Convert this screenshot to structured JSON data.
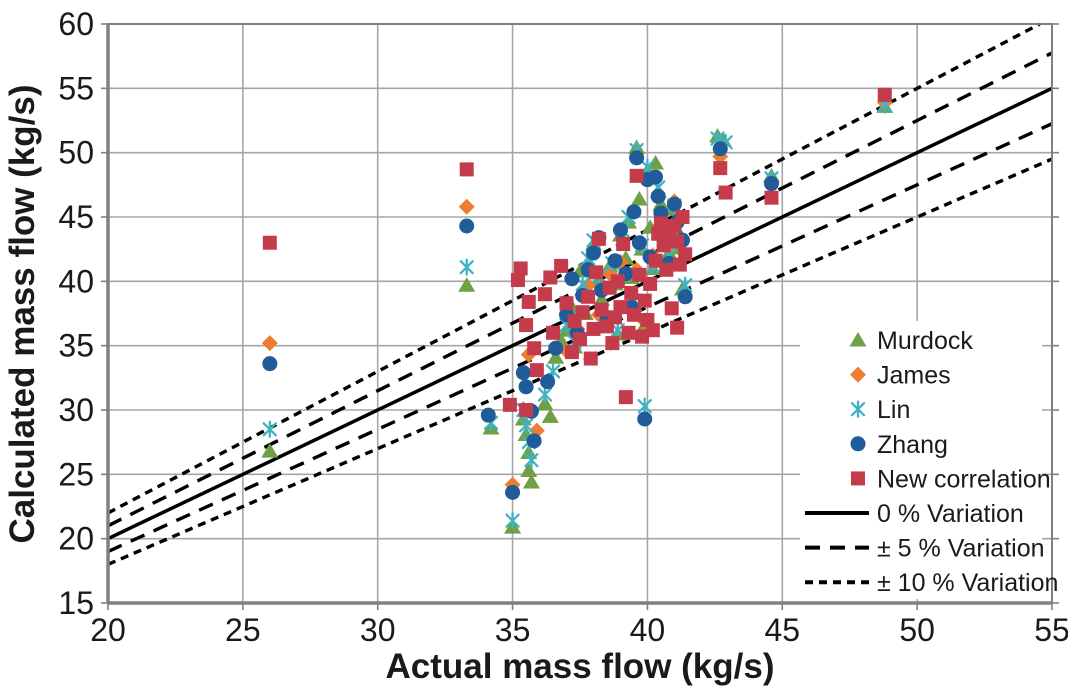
{
  "chart_data": {
    "type": "scatter",
    "title": "",
    "xlabel": "Actual mass flow (kg/s)",
    "ylabel": "Calculated mass flow (kg/s)",
    "xlim": [
      20,
      55
    ],
    "ylim": [
      15,
      60
    ],
    "xticks": [
      20,
      25,
      30,
      35,
      40,
      45,
      50,
      55
    ],
    "yticks": [
      15,
      20,
      25,
      30,
      35,
      40,
      45,
      50,
      55,
      60
    ],
    "grid": true,
    "legend_position": "inside-right",
    "colors": {
      "background": "#ffffff",
      "gridline": "#a6a6a6",
      "axis_border": "#808080",
      "tick_text": "#1a1a1a",
      "line": "#000000"
    },
    "series": [
      {
        "name": "Murdock",
        "marker": "triangle",
        "color": "#6FA043",
        "points": [
          [
            26,
            26.8
          ],
          [
            33.3,
            39.7
          ],
          [
            34.2,
            28.6
          ],
          [
            35,
            20.9
          ],
          [
            35.4,
            29.3
          ],
          [
            35.5,
            28.1
          ],
          [
            35.6,
            26.7
          ],
          [
            35.6,
            25.3
          ],
          [
            35.7,
            24.4
          ],
          [
            36.2,
            30.5
          ],
          [
            36.4,
            29.5
          ],
          [
            36.6,
            34.1
          ],
          [
            36.8,
            35.4
          ],
          [
            37,
            36.2
          ],
          [
            37.2,
            38
          ],
          [
            37.3,
            34.9
          ],
          [
            37.5,
            40.8
          ],
          [
            37.6,
            39.4
          ],
          [
            37.7,
            37.5
          ],
          [
            37.8,
            41.5
          ],
          [
            38,
            42.9
          ],
          [
            38.2,
            40
          ],
          [
            38.3,
            38.6
          ],
          [
            38.4,
            36.8
          ],
          [
            38.6,
            41.2
          ],
          [
            38.8,
            39.8
          ],
          [
            38.9,
            35.9
          ],
          [
            39,
            43.6
          ],
          [
            39.2,
            41.8
          ],
          [
            39.3,
            44.6
          ],
          [
            39.4,
            40.3
          ],
          [
            39.5,
            38.2
          ],
          [
            39.6,
            50.4
          ],
          [
            39.7,
            46.4
          ],
          [
            39.8,
            42.5
          ],
          [
            39.9,
            36.6
          ],
          [
            40,
            48.6
          ],
          [
            40.1,
            44.2
          ],
          [
            40.2,
            41
          ],
          [
            40.3,
            49.2
          ],
          [
            40.4,
            47
          ],
          [
            40.5,
            46
          ],
          [
            40.6,
            44.8
          ],
          [
            40.7,
            43.4
          ],
          [
            40.8,
            42.2
          ],
          [
            41,
            45.6
          ],
          [
            41.1,
            44
          ],
          [
            41.2,
            42.6
          ],
          [
            41.3,
            39.4
          ],
          [
            42.6,
            51.3
          ],
          [
            42.8,
            51
          ],
          [
            44.6,
            48.2
          ],
          [
            48.8,
            53.6
          ]
        ]
      },
      {
        "name": "James",
        "marker": "diamond",
        "color": "#ED7D31",
        "points": [
          [
            26,
            35.2
          ],
          [
            33.3,
            45.8
          ],
          [
            35,
            24.2
          ],
          [
            35.6,
            34.3
          ],
          [
            35.9,
            28.4
          ],
          [
            37,
            34.6
          ],
          [
            37.4,
            36.3
          ],
          [
            37.8,
            39.7
          ],
          [
            38.2,
            37.4
          ],
          [
            38.6,
            40.6
          ],
          [
            39,
            41.5
          ],
          [
            39.3,
            37.9
          ],
          [
            39.6,
            40.9
          ],
          [
            39.9,
            36.9
          ],
          [
            40.2,
            42
          ],
          [
            40.5,
            44.4
          ],
          [
            40.8,
            42.5
          ],
          [
            41,
            46.2
          ],
          [
            41.2,
            44.9
          ],
          [
            42.7,
            49.7
          ],
          [
            48.8,
            53.9
          ]
        ]
      },
      {
        "name": "Lin",
        "marker": "star",
        "color": "#3FB3C6",
        "points": [
          [
            26,
            28.5
          ],
          [
            33.3,
            41.1
          ],
          [
            34.2,
            29
          ],
          [
            35,
            21.4
          ],
          [
            35.4,
            30
          ],
          [
            35.5,
            28.8
          ],
          [
            35.6,
            27.5
          ],
          [
            35.7,
            26.1
          ],
          [
            36.2,
            31.2
          ],
          [
            36.5,
            33
          ],
          [
            37,
            36.6
          ],
          [
            37.3,
            35.3
          ],
          [
            37.6,
            39.8
          ],
          [
            37.8,
            41.8
          ],
          [
            38,
            43.2
          ],
          [
            38.2,
            40.4
          ],
          [
            38.4,
            37.2
          ],
          [
            38.7,
            41.4
          ],
          [
            38.9,
            36.2
          ],
          [
            39.1,
            43.9
          ],
          [
            39.3,
            45
          ],
          [
            39.5,
            38.5
          ],
          [
            39.6,
            50.2
          ],
          [
            39.8,
            42.8
          ],
          [
            39.9,
            30.3
          ],
          [
            40,
            48.9
          ],
          [
            40.2,
            41.2
          ],
          [
            40.4,
            47.3
          ],
          [
            40.6,
            45.1
          ],
          [
            40.8,
            42
          ],
          [
            41,
            45.9
          ],
          [
            41.2,
            43
          ],
          [
            41.4,
            39.7
          ],
          [
            42.6,
            51.1
          ],
          [
            42.9,
            50.8
          ],
          [
            44.6,
            48
          ],
          [
            48.8,
            53.7
          ]
        ]
      },
      {
        "name": "Zhang",
        "marker": "circle",
        "color": "#1F5C99",
        "points": [
          [
            26,
            33.6
          ],
          [
            33.3,
            44.3
          ],
          [
            34.1,
            29.6
          ],
          [
            35,
            23.6
          ],
          [
            35.4,
            32.9
          ],
          [
            35.5,
            31.8
          ],
          [
            35.7,
            29.9
          ],
          [
            35.8,
            27.6
          ],
          [
            36.3,
            32.2
          ],
          [
            36.6,
            34.8
          ],
          [
            37,
            37.4
          ],
          [
            37.2,
            40.2
          ],
          [
            37.4,
            36
          ],
          [
            37.6,
            38.9
          ],
          [
            37.8,
            40.9
          ],
          [
            38,
            42.2
          ],
          [
            38.2,
            43.4
          ],
          [
            38.3,
            39.3
          ],
          [
            38.5,
            37
          ],
          [
            38.8,
            41.6
          ],
          [
            39,
            44
          ],
          [
            39.2,
            40.6
          ],
          [
            39.4,
            38
          ],
          [
            39.5,
            45.4
          ],
          [
            39.6,
            49.6
          ],
          [
            39.7,
            43
          ],
          [
            39.9,
            29.3
          ],
          [
            40,
            47.9
          ],
          [
            40.1,
            41.9
          ],
          [
            40.3,
            48.1
          ],
          [
            40.4,
            46.6
          ],
          [
            40.5,
            45.3
          ],
          [
            40.7,
            44.1
          ],
          [
            40.8,
            41.4
          ],
          [
            41,
            46
          ],
          [
            41.1,
            44.6
          ],
          [
            41.3,
            43.2
          ],
          [
            41.4,
            38.8
          ],
          [
            42.7,
            50.3
          ],
          [
            44.6,
            47.6
          ]
        ]
      },
      {
        "name": "New correlation",
        "marker": "square",
        "color": "#C43B4C",
        "points": [
          [
            26,
            43
          ],
          [
            33.3,
            48.7
          ],
          [
            34.9,
            30.4
          ],
          [
            35.5,
            30
          ],
          [
            35.2,
            40.1
          ],
          [
            35.3,
            41
          ],
          [
            35.5,
            36.6
          ],
          [
            35.6,
            38.4
          ],
          [
            35.8,
            34.8
          ],
          [
            35.9,
            33.1
          ],
          [
            36.2,
            39
          ],
          [
            36.4,
            40.3
          ],
          [
            36.5,
            36
          ],
          [
            36.8,
            41.2
          ],
          [
            37,
            38.3
          ],
          [
            37.2,
            34.5
          ],
          [
            37.3,
            36.9
          ],
          [
            37.5,
            35.5
          ],
          [
            37.6,
            37.6
          ],
          [
            37.8,
            38.8
          ],
          [
            37.9,
            34
          ],
          [
            38,
            36.3
          ],
          [
            38.1,
            40.7
          ],
          [
            38.2,
            43.3
          ],
          [
            38.3,
            37.8
          ],
          [
            38.5,
            36.5
          ],
          [
            38.6,
            39.5
          ],
          [
            38.7,
            35.2
          ],
          [
            38.8,
            37.2
          ],
          [
            38.9,
            40
          ],
          [
            39,
            38
          ],
          [
            39.1,
            42.9
          ],
          [
            39.2,
            31
          ],
          [
            39.3,
            36
          ],
          [
            39.4,
            39.1
          ],
          [
            39.5,
            37.4
          ],
          [
            39.6,
            48.2
          ],
          [
            39.7,
            40.5
          ],
          [
            39.8,
            35.7
          ],
          [
            39.9,
            38.5
          ],
          [
            40,
            37
          ],
          [
            40.1,
            39.8
          ],
          [
            40.2,
            36.2
          ],
          [
            40.3,
            41.6
          ],
          [
            40.4,
            43.7
          ],
          [
            40.5,
            44.5
          ],
          [
            40.6,
            42.8
          ],
          [
            40.7,
            40.9
          ],
          [
            40.8,
            43.9
          ],
          [
            40.9,
            37.9
          ],
          [
            41,
            44.3
          ],
          [
            41.1,
            36.4
          ],
          [
            41.1,
            43.1
          ],
          [
            41.2,
            41.3
          ],
          [
            41.3,
            45
          ],
          [
            41.4,
            42.1
          ],
          [
            42.7,
            48.8
          ],
          [
            42.9,
            46.9
          ],
          [
            44.6,
            46.5
          ],
          [
            48.8,
            54.5
          ]
        ]
      }
    ],
    "lines": [
      {
        "name": "0 % Variation",
        "slopes": [
          1.0
        ],
        "dash": "",
        "width": 3.5
      },
      {
        "name": "± 5 % Variation",
        "slopes": [
          1.05,
          0.95
        ],
        "dash": "15,10",
        "width": 3.4
      },
      {
        "name": "± 10 % Variation",
        "slopes": [
          1.1,
          0.9
        ],
        "dash": "8,6",
        "width": 3.4
      }
    ]
  }
}
